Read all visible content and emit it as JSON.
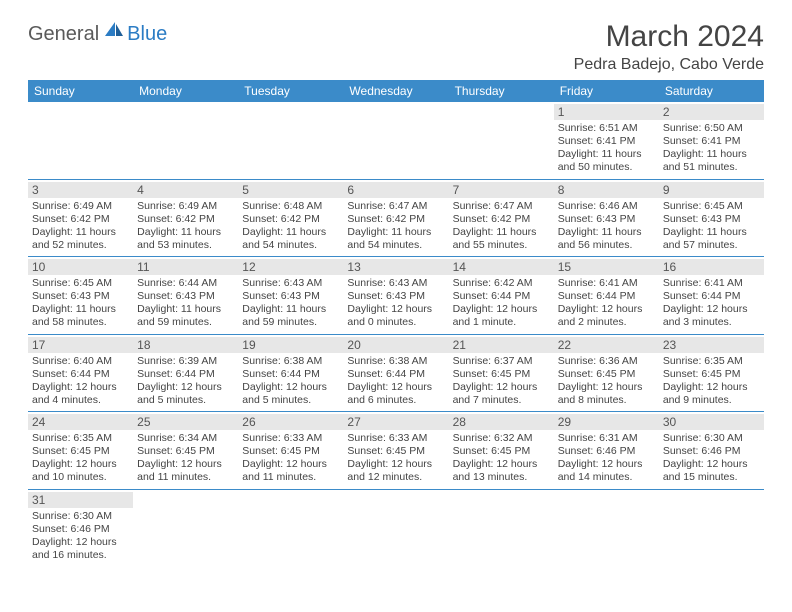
{
  "logo": {
    "text1": "General",
    "text2": "Blue"
  },
  "title": "March 2024",
  "location": "Pedra Badejo, Cabo Verde",
  "colors": {
    "header_bg": "#3b8bc9",
    "header_text": "#ffffff",
    "daynum_bg": "#e7e7e7",
    "row_border": "#3b8bc9",
    "logo_gray": "#5a5a5a",
    "logo_blue": "#2b7cc4"
  },
  "weekdays": [
    "Sunday",
    "Monday",
    "Tuesday",
    "Wednesday",
    "Thursday",
    "Friday",
    "Saturday"
  ],
  "weeks": [
    [
      null,
      null,
      null,
      null,
      null,
      {
        "n": "1",
        "sr": "Sunrise: 6:51 AM",
        "ss": "Sunset: 6:41 PM",
        "d1": "Daylight: 11 hours",
        "d2": "and 50 minutes."
      },
      {
        "n": "2",
        "sr": "Sunrise: 6:50 AM",
        "ss": "Sunset: 6:41 PM",
        "d1": "Daylight: 11 hours",
        "d2": "and 51 minutes."
      }
    ],
    [
      {
        "n": "3",
        "sr": "Sunrise: 6:49 AM",
        "ss": "Sunset: 6:42 PM",
        "d1": "Daylight: 11 hours",
        "d2": "and 52 minutes."
      },
      {
        "n": "4",
        "sr": "Sunrise: 6:49 AM",
        "ss": "Sunset: 6:42 PM",
        "d1": "Daylight: 11 hours",
        "d2": "and 53 minutes."
      },
      {
        "n": "5",
        "sr": "Sunrise: 6:48 AM",
        "ss": "Sunset: 6:42 PM",
        "d1": "Daylight: 11 hours",
        "d2": "and 54 minutes."
      },
      {
        "n": "6",
        "sr": "Sunrise: 6:47 AM",
        "ss": "Sunset: 6:42 PM",
        "d1": "Daylight: 11 hours",
        "d2": "and 54 minutes."
      },
      {
        "n": "7",
        "sr": "Sunrise: 6:47 AM",
        "ss": "Sunset: 6:42 PM",
        "d1": "Daylight: 11 hours",
        "d2": "and 55 minutes."
      },
      {
        "n": "8",
        "sr": "Sunrise: 6:46 AM",
        "ss": "Sunset: 6:43 PM",
        "d1": "Daylight: 11 hours",
        "d2": "and 56 minutes."
      },
      {
        "n": "9",
        "sr": "Sunrise: 6:45 AM",
        "ss": "Sunset: 6:43 PM",
        "d1": "Daylight: 11 hours",
        "d2": "and 57 minutes."
      }
    ],
    [
      {
        "n": "10",
        "sr": "Sunrise: 6:45 AM",
        "ss": "Sunset: 6:43 PM",
        "d1": "Daylight: 11 hours",
        "d2": "and 58 minutes."
      },
      {
        "n": "11",
        "sr": "Sunrise: 6:44 AM",
        "ss": "Sunset: 6:43 PM",
        "d1": "Daylight: 11 hours",
        "d2": "and 59 minutes."
      },
      {
        "n": "12",
        "sr": "Sunrise: 6:43 AM",
        "ss": "Sunset: 6:43 PM",
        "d1": "Daylight: 11 hours",
        "d2": "and 59 minutes."
      },
      {
        "n": "13",
        "sr": "Sunrise: 6:43 AM",
        "ss": "Sunset: 6:43 PM",
        "d1": "Daylight: 12 hours",
        "d2": "and 0 minutes."
      },
      {
        "n": "14",
        "sr": "Sunrise: 6:42 AM",
        "ss": "Sunset: 6:44 PM",
        "d1": "Daylight: 12 hours",
        "d2": "and 1 minute."
      },
      {
        "n": "15",
        "sr": "Sunrise: 6:41 AM",
        "ss": "Sunset: 6:44 PM",
        "d1": "Daylight: 12 hours",
        "d2": "and 2 minutes."
      },
      {
        "n": "16",
        "sr": "Sunrise: 6:41 AM",
        "ss": "Sunset: 6:44 PM",
        "d1": "Daylight: 12 hours",
        "d2": "and 3 minutes."
      }
    ],
    [
      {
        "n": "17",
        "sr": "Sunrise: 6:40 AM",
        "ss": "Sunset: 6:44 PM",
        "d1": "Daylight: 12 hours",
        "d2": "and 4 minutes."
      },
      {
        "n": "18",
        "sr": "Sunrise: 6:39 AM",
        "ss": "Sunset: 6:44 PM",
        "d1": "Daylight: 12 hours",
        "d2": "and 5 minutes."
      },
      {
        "n": "19",
        "sr": "Sunrise: 6:38 AM",
        "ss": "Sunset: 6:44 PM",
        "d1": "Daylight: 12 hours",
        "d2": "and 5 minutes."
      },
      {
        "n": "20",
        "sr": "Sunrise: 6:38 AM",
        "ss": "Sunset: 6:44 PM",
        "d1": "Daylight: 12 hours",
        "d2": "and 6 minutes."
      },
      {
        "n": "21",
        "sr": "Sunrise: 6:37 AM",
        "ss": "Sunset: 6:45 PM",
        "d1": "Daylight: 12 hours",
        "d2": "and 7 minutes."
      },
      {
        "n": "22",
        "sr": "Sunrise: 6:36 AM",
        "ss": "Sunset: 6:45 PM",
        "d1": "Daylight: 12 hours",
        "d2": "and 8 minutes."
      },
      {
        "n": "23",
        "sr": "Sunrise: 6:35 AM",
        "ss": "Sunset: 6:45 PM",
        "d1": "Daylight: 12 hours",
        "d2": "and 9 minutes."
      }
    ],
    [
      {
        "n": "24",
        "sr": "Sunrise: 6:35 AM",
        "ss": "Sunset: 6:45 PM",
        "d1": "Daylight: 12 hours",
        "d2": "and 10 minutes."
      },
      {
        "n": "25",
        "sr": "Sunrise: 6:34 AM",
        "ss": "Sunset: 6:45 PM",
        "d1": "Daylight: 12 hours",
        "d2": "and 11 minutes."
      },
      {
        "n": "26",
        "sr": "Sunrise: 6:33 AM",
        "ss": "Sunset: 6:45 PM",
        "d1": "Daylight: 12 hours",
        "d2": "and 11 minutes."
      },
      {
        "n": "27",
        "sr": "Sunrise: 6:33 AM",
        "ss": "Sunset: 6:45 PM",
        "d1": "Daylight: 12 hours",
        "d2": "and 12 minutes."
      },
      {
        "n": "28",
        "sr": "Sunrise: 6:32 AM",
        "ss": "Sunset: 6:45 PM",
        "d1": "Daylight: 12 hours",
        "d2": "and 13 minutes."
      },
      {
        "n": "29",
        "sr": "Sunrise: 6:31 AM",
        "ss": "Sunset: 6:46 PM",
        "d1": "Daylight: 12 hours",
        "d2": "and 14 minutes."
      },
      {
        "n": "30",
        "sr": "Sunrise: 6:30 AM",
        "ss": "Sunset: 6:46 PM",
        "d1": "Daylight: 12 hours",
        "d2": "and 15 minutes."
      }
    ],
    [
      {
        "n": "31",
        "sr": "Sunrise: 6:30 AM",
        "ss": "Sunset: 6:46 PM",
        "d1": "Daylight: 12 hours",
        "d2": "and 16 minutes."
      },
      null,
      null,
      null,
      null,
      null,
      null
    ]
  ]
}
